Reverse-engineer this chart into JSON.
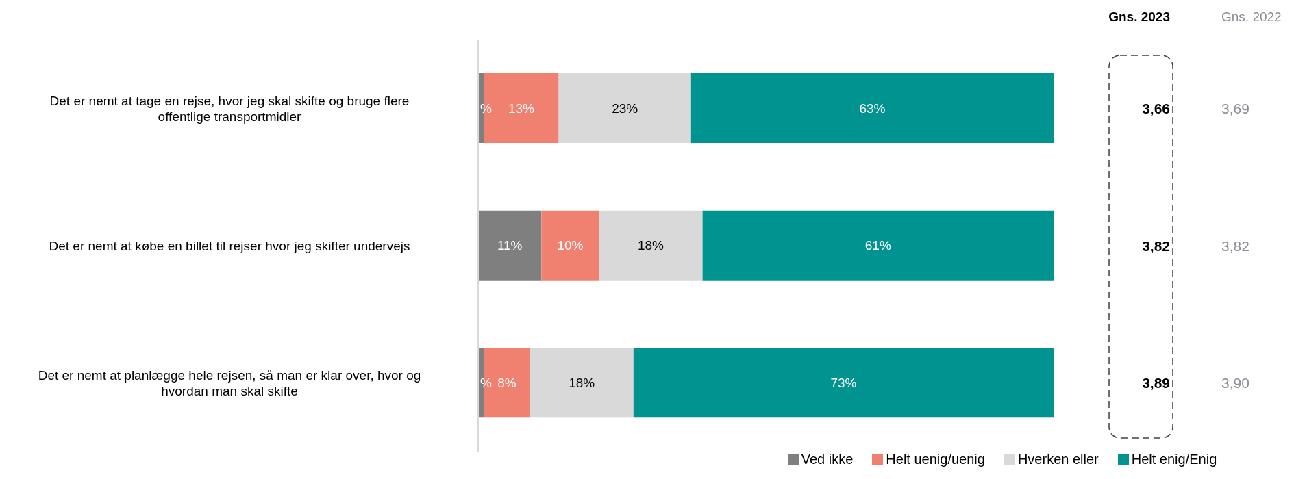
{
  "chart_data": {
    "type": "bar",
    "orientation": "horizontal",
    "stacked": true,
    "legend": "bottom",
    "tick_labels": "y",
    "categories": [
      "Det er nemt at tage en rejse, hvor jeg skal skifte og bruge flere offentlige transportmidler",
      "Det er nemt at købe en billet til rejser hvor jeg skifter undervejs",
      "Det er nemt at planlægge hele rejsen, så man er klar over, hvor og hvordan man skal skifte"
    ],
    "series": [
      {
        "name": "Ved ikke",
        "color": "#7f7f7f",
        "values": [
          1,
          11,
          1
        ],
        "value_labels": [
          "%",
          "11%",
          "%"
        ]
      },
      {
        "name": "Helt uenig/uenig",
        "color": "#f08070",
        "values": [
          13,
          10,
          8
        ],
        "value_labels": [
          "13%",
          "10%",
          "8%"
        ]
      },
      {
        "name": "Hverken eller",
        "color": "#d9d9d9",
        "values": [
          23,
          18,
          18
        ],
        "value_labels": [
          "23%",
          "18%",
          "18%"
        ]
      },
      {
        "name": "Helt enig/Enig",
        "color": "#009390",
        "values": [
          63,
          61,
          73
        ],
        "value_labels": [
          "63%",
          "61%",
          "73%"
        ]
      }
    ],
    "annotations": [
      "Gns. 2023",
      "3,66",
      "3,82",
      "3,89",
      "Gns. 2022",
      "3,69",
      "3,82",
      "3,90"
    ]
  }
}
